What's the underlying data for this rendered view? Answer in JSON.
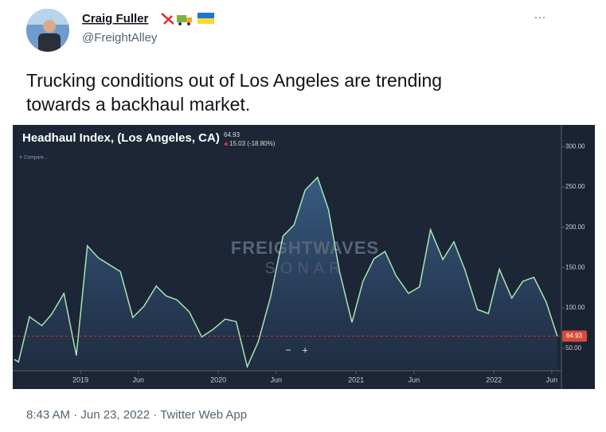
{
  "tweet": {
    "author": "Craig Fuller",
    "handle": "@FreightAlley",
    "more": "···",
    "text": [
      "Trucking conditions out of Los Angeles are trending",
      "towards a backhaul market."
    ],
    "timestamp": "8:43 AM · Jun 23, 2022 · Twitter Web App"
  },
  "chart_data": {
    "type": "area",
    "title": "Headhaul Index, (Los Angeles, CA)",
    "change": "15.03 (-18.80%)",
    "compare": "Compare...",
    "watermark": "FREIGHTWAVES",
    "watermark_sub": "SONAR",
    "zoom_controls": [
      "−",
      "+"
    ],
    "x": [
      2018.52,
      2018.55,
      2018.63,
      2018.72,
      2018.79,
      2018.88,
      2018.97,
      2019.05,
      2019.13,
      2019.29,
      2019.38,
      2019.46,
      2019.55,
      2019.62,
      2019.7,
      2019.79,
      2019.88,
      2019.96,
      2020.05,
      2020.13,
      2020.21,
      2020.29,
      2020.38,
      2020.47,
      2020.55,
      2020.63,
      2020.72,
      2020.8,
      2020.88,
      2020.97,
      2021.05,
      2021.13,
      2021.21,
      2021.29,
      2021.38,
      2021.46,
      2021.54,
      2021.63,
      2021.71,
      2021.79,
      2021.88,
      2021.96,
      2022.04,
      2022.13,
      2022.21,
      2022.29,
      2022.38,
      2022.46
    ],
    "series": [
      {
        "name": "Headhaul Index",
        "color": "#a8e6b0",
        "values": [
          36,
          33,
          89,
          78,
          92,
          118,
          41,
          177,
          162,
          145,
          88,
          102,
          127,
          115,
          110,
          95,
          64,
          73,
          86,
          83,
          27,
          58,
          114,
          189,
          203,
          246,
          262,
          222,
          145,
          82,
          133,
          161,
          170,
          140,
          118,
          126,
          197,
          160,
          182,
          147,
          98,
          93,
          148,
          112,
          133,
          138,
          107,
          64.93
        ]
      }
    ],
    "xlim": [
      2018.52,
      2022.49
    ],
    "ylim": [
      23,
      327
    ],
    "xticks": [
      {
        "value": 2019,
        "label": "2019"
      },
      {
        "value": 2019.42,
        "label": "Jun"
      },
      {
        "value": 2020,
        "label": "2020"
      },
      {
        "value": 2020.42,
        "label": "Jun"
      },
      {
        "value": 2021,
        "label": "2021"
      },
      {
        "value": 2021.42,
        "label": "Jun"
      },
      {
        "value": 2022,
        "label": "2022"
      },
      {
        "value": 2022.42,
        "label": "Jun"
      }
    ],
    "yticks": [
      {
        "value": 50,
        "label": "50.00"
      },
      {
        "value": 100,
        "label": "100.00"
      },
      {
        "value": 150,
        "label": "150.00"
      },
      {
        "value": 200,
        "label": "200.00"
      },
      {
        "value": 250,
        "label": "250.00"
      },
      {
        "value": 300,
        "label": "300.00"
      }
    ]
  }
}
